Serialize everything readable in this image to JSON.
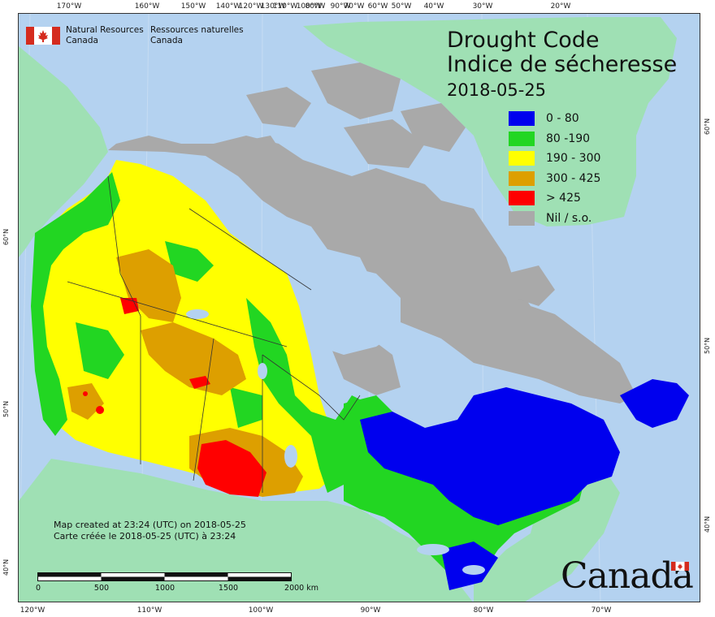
{
  "title": {
    "en": "Drought Code",
    "fr": "Indice de sécheresse",
    "date": "2018-05-25"
  },
  "legend": [
    {
      "label": "0 - 80",
      "color": "#0000ee"
    },
    {
      "label": "80 -190",
      "color": "#22d622"
    },
    {
      "label": "190 - 300",
      "color": "#ffff00"
    },
    {
      "label": "300 - 425",
      "color": "#dd9f00"
    },
    {
      "label": "> 425",
      "color": "#ff0000"
    },
    {
      "label": "Nil / s.o.",
      "color": "#a9a9a9"
    }
  ],
  "agency": {
    "en_line1": "Natural Resources",
    "en_line2": "Canada",
    "fr_line1": "Ressources naturelles",
    "fr_line2": "Canada"
  },
  "credit": {
    "en": "Map created at 23:24 (UTC) on 2018-05-25",
    "fr": "Carte créée le 2018-05-25 (UTC) à 23:24"
  },
  "scale_bar": {
    "labels": [
      "0",
      "500",
      "1000",
      "1500",
      "2000  km"
    ]
  },
  "graticule": {
    "top": [
      "170°W",
      "160°W",
      "150°W",
      "140°W",
      "130°W",
      "120°W",
      "110°W",
      "100°W",
      "90°W",
      "80°W",
      "70°W",
      "60°W",
      "50°W",
      "40°W",
      "30°W",
      "20°W"
    ],
    "bottom": [
      "120°W",
      "110°W",
      "100°W",
      "90°W",
      "80°W",
      "70°W"
    ],
    "left": [
      "60°N",
      "50°N",
      "40°N"
    ],
    "right": [
      "60°N",
      "50°N",
      "40°N"
    ]
  },
  "wordmark": "Canada",
  "colors": {
    "ocean": "#b4d2f0",
    "foreign_land": "#9fe0b4",
    "nil": "#a9a9a9"
  }
}
